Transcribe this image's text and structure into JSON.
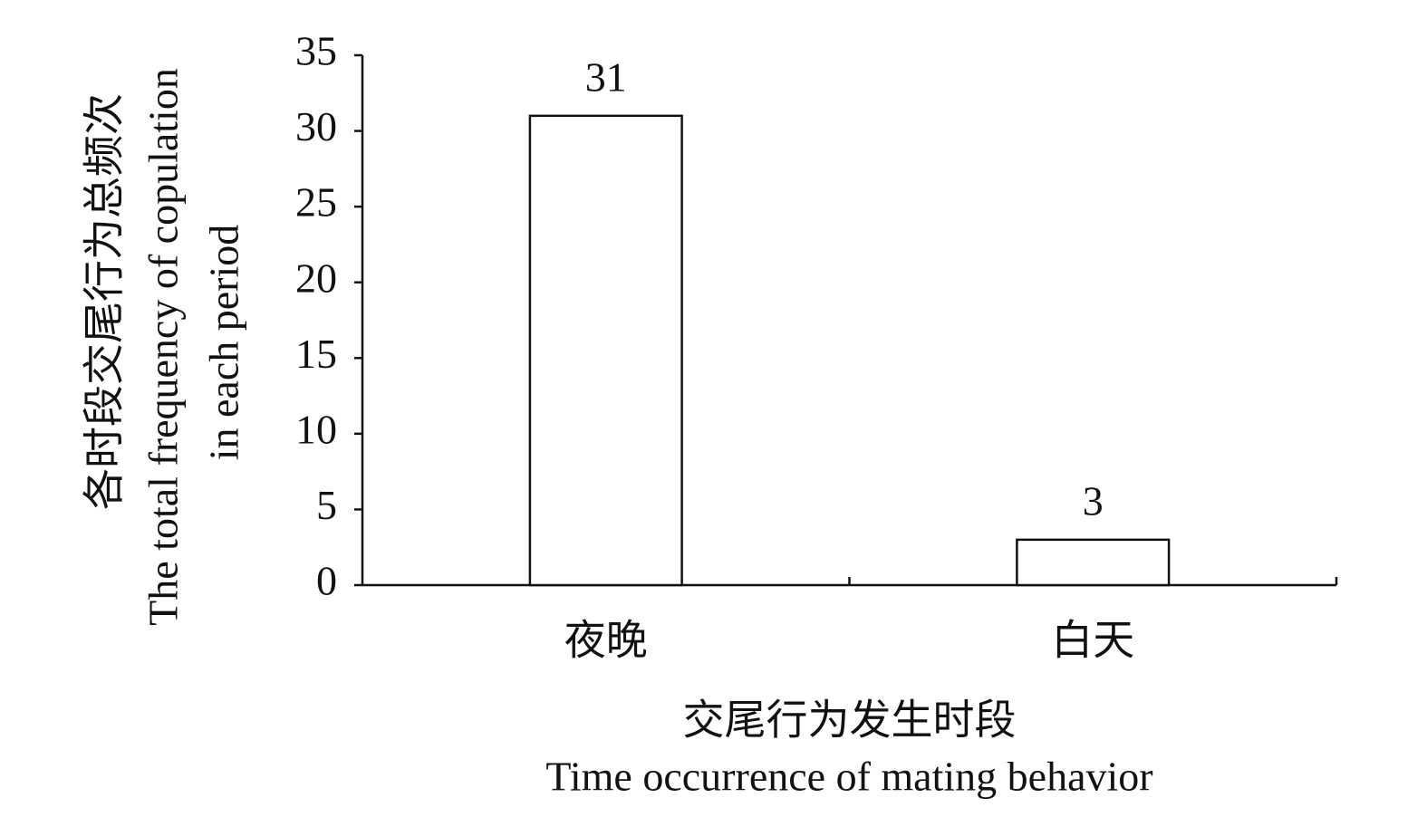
{
  "chart_data": {
    "type": "bar",
    "categories": [
      "夜晚",
      "白天"
    ],
    "values": [
      31,
      3
    ],
    "color": "#ffffff",
    "ylim": [
      0,
      35
    ],
    "yticks": [
      0,
      5,
      10,
      15,
      20,
      25,
      30,
      35
    ],
    "xlabel": [
      "交尾行为发生时段",
      "Time occurrence of mating behavior"
    ],
    "ylabel": [
      "各时段交尾行为总频次",
      "The total frequency of copulation",
      "in each period"
    ],
    "grid": false
  }
}
